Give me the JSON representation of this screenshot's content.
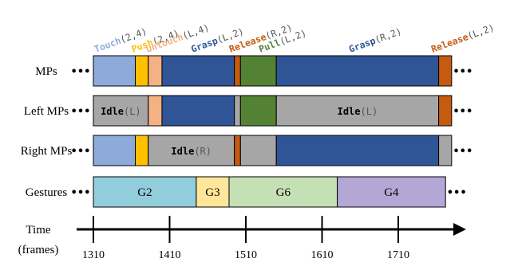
{
  "rows": [
    {
      "id": "mps",
      "label": "MPs",
      "segments": [
        {
          "start": 1310,
          "end": 1365,
          "color": "#8eaadb",
          "text": null
        },
        {
          "start": 1365,
          "end": 1382,
          "color": "#ffc000",
          "text": null
        },
        {
          "start": 1382,
          "end": 1400,
          "color": "#f4b183",
          "text": null
        },
        {
          "start": 1400,
          "end": 1495,
          "color": "#2f5597",
          "text": null
        },
        {
          "start": 1495,
          "end": 1503,
          "color": "#c55a11",
          "text": null
        },
        {
          "start": 1503,
          "end": 1550,
          "color": "#548235",
          "text": null
        },
        {
          "start": 1550,
          "end": 1763,
          "color": "#2f5597",
          "text": null
        },
        {
          "start": 1763,
          "end": 1780,
          "color": "#c55a11",
          "text": null
        }
      ]
    },
    {
      "id": "left-mps",
      "label": "Left MPs",
      "segments": [
        {
          "start": 1310,
          "end": 1382,
          "color": "#a6a6a6",
          "text": {
            "name": "Idle",
            "args": "(L)"
          }
        },
        {
          "start": 1382,
          "end": 1400,
          "color": "#f4b183",
          "text": null
        },
        {
          "start": 1400,
          "end": 1495,
          "color": "#2f5597",
          "text": null
        },
        {
          "start": 1495,
          "end": 1503,
          "color": "#a6a6a6",
          "text": null
        },
        {
          "start": 1503,
          "end": 1550,
          "color": "#548235",
          "text": null
        },
        {
          "start": 1550,
          "end": 1763,
          "color": "#a6a6a6",
          "text": {
            "name": "Idle",
            "args": "(L)"
          }
        },
        {
          "start": 1763,
          "end": 1780,
          "color": "#c55a11",
          "text": null
        }
      ]
    },
    {
      "id": "right-mps",
      "label": "Right MPs",
      "segments": [
        {
          "start": 1310,
          "end": 1365,
          "color": "#8eaadb",
          "text": null
        },
        {
          "start": 1365,
          "end": 1382,
          "color": "#ffc000",
          "text": null
        },
        {
          "start": 1382,
          "end": 1495,
          "color": "#a6a6a6",
          "text": {
            "name": "Idle",
            "args": "(R)"
          }
        },
        {
          "start": 1495,
          "end": 1503,
          "color": "#c55a11",
          "text": null
        },
        {
          "start": 1503,
          "end": 1550,
          "color": "#a6a6a6",
          "text": null
        },
        {
          "start": 1550,
          "end": 1763,
          "color": "#2f5597",
          "text": null
        },
        {
          "start": 1763,
          "end": 1780,
          "color": "#a6a6a6",
          "text": null
        }
      ]
    },
    {
      "id": "gestures",
      "label": "Gestures",
      "segments": [
        {
          "start": 1310,
          "end": 1445,
          "color": "#92cddc",
          "text": {
            "name": "G2",
            "args": ""
          }
        },
        {
          "start": 1445,
          "end": 1488,
          "color": "#ffe699",
          "text": {
            "name": "G3",
            "args": ""
          }
        },
        {
          "start": 1488,
          "end": 1630,
          "color": "#c5e0b4",
          "text": {
            "name": "G6",
            "args": ""
          }
        },
        {
          "start": 1630,
          "end": 1772,
          "color": "#b4a7d6",
          "text": {
            "name": "G4",
            "args": ""
          }
        }
      ]
    }
  ],
  "ellipsis": "•••",
  "top_labels": [
    {
      "name": "Touch",
      "args": "(2,4)",
      "color": "#8eaadb",
      "frame": 1313
    },
    {
      "name": "Push",
      "args": "(2,4)",
      "color": "#ffc000",
      "frame": 1362
    },
    {
      "name": "Untouch",
      "args": "(L,4)",
      "color": "#f4b183",
      "frame": 1381
    },
    {
      "name": "Grasp",
      "args": "(L,2)",
      "color": "#2f5597",
      "frame": 1440
    },
    {
      "name": "Release",
      "args": "(R,2)",
      "color": "#c55a11",
      "frame": 1490
    },
    {
      "name": "Pull",
      "args": "(L,2)",
      "color": "#548235",
      "frame": 1529
    },
    {
      "name": "Grasp",
      "args": "(R,2)",
      "color": "#2f5597",
      "frame": 1647
    },
    {
      "name": "Release",
      "args": "(L,2)",
      "color": "#c55a11",
      "frame": 1755
    }
  ],
  "time_axis": {
    "label_line1": "Time",
    "label_line2": "(frames)",
    "ticks": [
      1310,
      1410,
      1510,
      1610,
      1710
    ]
  }
}
